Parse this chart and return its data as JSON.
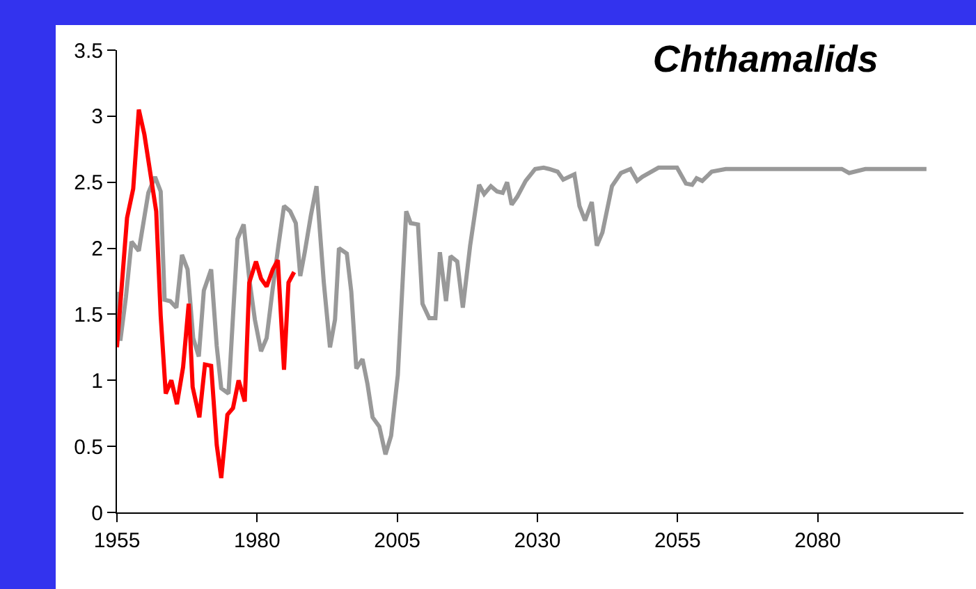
{
  "chart_data": {
    "type": "line",
    "title": "Chthamalids",
    "xlim": [
      1955,
      2106
    ],
    "xticks": [
      1955,
      1980,
      2005,
      2030,
      2055,
      2080
    ],
    "ylim": [
      0,
      3.5
    ],
    "yticks": [
      0,
      0.5,
      1,
      1.5,
      2,
      2.5,
      3,
      3.5
    ],
    "marker": "none",
    "line_style": "solid",
    "series": [
      {
        "color": "#999999",
        "x": [
          1955,
          1955.6,
          1956.6,
          1957.6,
          1958.9,
          1960.6,
          1961.8,
          1962.8,
          1963.5,
          1964.5,
          1965.6,
          1966.6,
          1967.6,
          1968.6,
          1969.6,
          1970.5,
          1971.8,
          1972.8,
          1973.6,
          1974.9,
          1976.5,
          1977.6,
          1978.6,
          1979.6,
          1980.7,
          1981.7,
          1982.8,
          1983.8,
          1984.8,
          1985.9,
          1986.9,
          1987.7,
          1988.5,
          1989.6,
          1990.6,
          1991.9,
          1993,
          1993.9,
          1994.6,
          1996,
          1996.8,
          1997.7,
          1998.8,
          1999.7,
          2000.6,
          2001.8,
          2002.9,
          2003.9,
          2005.1,
          2006.6,
          2007.4,
          2008.7,
          2009.5,
          2010.7,
          2011.8,
          2012.6,
          2013.7,
          2014.5,
          2015.7,
          2016.7,
          2018,
          2019.6,
          2020.5,
          2021.7,
          2022.8,
          2023.8,
          2024.6,
          2025.4,
          2026.4,
          2027.9,
          2029.6,
          2031.1,
          2032.1,
          2033.6,
          2034.6,
          2036.6,
          2037.5,
          2038.5,
          2039.7,
          2040.6,
          2041.6,
          2043.3,
          2044.9,
          2046.6,
          2047.8,
          2048.7,
          2051.6,
          2054.9,
          2056.5,
          2057.6,
          2058.4,
          2059.4,
          2061.1,
          2063.6,
          2084.3,
          2085.6,
          2088.5,
          2099.4
        ],
        "values": [
          1.67,
          1.3,
          1.63,
          2.05,
          1.98,
          2.42,
          2.54,
          2.43,
          1.61,
          1.6,
          1.55,
          1.95,
          1.84,
          1.32,
          1.18,
          1.68,
          1.84,
          1.26,
          0.94,
          0.9,
          2.07,
          2.18,
          1.77,
          1.46,
          1.22,
          1.32,
          1.7,
          2.02,
          2.32,
          2.28,
          2.19,
          1.79,
          1.97,
          2.25,
          2.47,
          1.74,
          1.25,
          1.46,
          2.0,
          1.96,
          1.67,
          1.09,
          1.16,
          0.97,
          0.72,
          0.65,
          0.44,
          0.58,
          1.04,
          2.28,
          2.19,
          2.18,
          1.58,
          1.47,
          1.47,
          1.97,
          1.6,
          1.94,
          1.9,
          1.55,
          2.02,
          2.48,
          2.41,
          2.47,
          2.43,
          2.42,
          2.5,
          2.33,
          2.39,
          2.51,
          2.6,
          2.61,
          2.6,
          2.58,
          2.52,
          2.56,
          2.32,
          2.21,
          2.35,
          2.02,
          2.12,
          2.47,
          2.57,
          2.6,
          2.51,
          2.54,
          2.61,
          2.61,
          2.49,
          2.48,
          2.53,
          2.51,
          2.58,
          2.6,
          2.6,
          2.57,
          2.6,
          2.6
        ]
      },
      {
        "color": "#ff0000",
        "x": [
          1955,
          1956.8,
          1957.9,
          1958.9,
          1959.9,
          1962,
          1962.8,
          1963.7,
          1964.7,
          1965.7,
          1966.8,
          1967.8,
          1968.5,
          1969.7,
          1970.7,
          1971.8,
          1972.8,
          1973.6,
          1974.7,
          1975.7,
          1976.7,
          1977.8,
          1978.6,
          1979.8,
          1980.7,
          1981.7,
          1982.8,
          1983.7,
          1984.8,
          1985.6,
          1986.6
        ],
        "values": [
          1.25,
          2.23,
          2.45,
          3.05,
          2.86,
          2.28,
          1.49,
          0.9,
          1.0,
          0.82,
          1.1,
          1.58,
          0.95,
          0.72,
          1.12,
          1.11,
          0.51,
          0.26,
          0.74,
          0.79,
          1.0,
          0.84,
          1.74,
          1.9,
          1.77,
          1.71,
          1.84,
          1.91,
          1.08,
          1.74,
          1.82
        ]
      }
    ]
  }
}
